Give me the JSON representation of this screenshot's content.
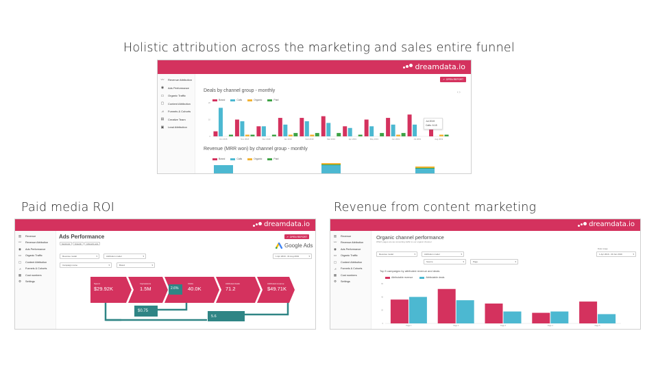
{
  "titles": {
    "main": "Holistic attribution across the marketing and sales entire funnel",
    "paid": "Paid media ROI",
    "content": "Revenue from content marketing"
  },
  "brand": {
    "name": "dreamdata.io",
    "color": "#d4325e"
  },
  "top_shot": {
    "sidebar": [
      {
        "label": "Revenue Attribution",
        "icon": "trend-line-icon"
      },
      {
        "label": "Ads Performance",
        "icon": "ads-icon"
      },
      {
        "label": "Organic Traffic",
        "icon": "traffic-icon"
      },
      {
        "label": "Content Attribution",
        "icon": "content-icon"
      },
      {
        "label": "Funnels & Cohorts",
        "icon": "funnel-icon"
      },
      {
        "label": "Creative Team",
        "icon": "team-icon"
      },
      {
        "label": "Lead Attribution",
        "icon": "lead-icon"
      }
    ],
    "open_report": "OPEN REPORT",
    "chart1_title": "Deals by channel group - monthly",
    "chart2_title": "Revenue (MRR won) by channel group - monthly",
    "legend": [
      "Brand",
      "Calls",
      "Organic",
      "Paid"
    ],
    "tooltip": {
      "title": "Jul 2019",
      "line": "Calls: 6.18"
    }
  },
  "chart_data": [
    {
      "type": "bar",
      "title": "Deals by channel group - monthly",
      "categories": [
        "Oct 2018",
        "Nov 2018",
        "Dec 2018",
        "Jan 2019",
        "Feb 2019",
        "Mar 2019",
        "Apr 2019",
        "May 2019",
        "Jun 2019",
        "Jul 2019",
        "Aug 2019"
      ],
      "series": [
        {
          "name": "Brand",
          "color": "#d4325e",
          "values": [
            3,
            10,
            6,
            11,
            11,
            12,
            6,
            10,
            11,
            13,
            4
          ]
        },
        {
          "name": "Calls",
          "color": "#4cb8d1",
          "values": [
            17,
            9,
            6,
            7,
            9,
            8,
            5,
            6,
            7,
            7,
            0
          ]
        },
        {
          "name": "Organic",
          "color": "#f2b233",
          "values": [
            0,
            1,
            0,
            1,
            1,
            0,
            0,
            0,
            1,
            0,
            1
          ]
        },
        {
          "name": "Paid",
          "color": "#3ea345",
          "values": [
            1,
            1,
            1,
            2,
            2,
            2,
            1,
            2,
            2,
            0,
            1
          ]
        }
      ],
      "ylim": [
        0,
        20
      ],
      "legend": "top-left"
    },
    {
      "type": "bar",
      "title": "Paid media ROI",
      "categories": [
        "Spend",
        "Impressions",
        "CTR",
        "Clicks",
        "Attributed deals",
        "Attributed revenue"
      ],
      "values_text": [
        "$29.92K",
        "1.5M",
        "2.6%",
        "40.0K",
        "71.2",
        "$49.71K"
      ],
      "cost_per_click": "$0.75",
      "return": "5.6"
    },
    {
      "type": "bar",
      "title": "Top 5 campaigns by attributed revenue and deals",
      "categories": [
        "Page 1",
        "Page 2",
        "Page 3",
        "Page 4",
        "Page 5"
      ],
      "series": [
        {
          "name": "Attributable revenue",
          "color": "#d4325e",
          "values": [
            36,
            52,
            30,
            16,
            33
          ]
        },
        {
          "name": "Attributable deals",
          "color": "#4cb8d1",
          "values": [
            40,
            35,
            18,
            18,
            14
          ]
        }
      ],
      "ylim": [
        0,
        60
      ],
      "legend": "top-left"
    }
  ],
  "paid_shot": {
    "sidebar": [
      {
        "label": "Revenue",
        "icon": "revenue-icon"
      },
      {
        "label": "Revenue Attribution",
        "icon": "trend-line-icon"
      },
      {
        "label": "Ads Performance",
        "icon": "ads-icon"
      },
      {
        "label": "Organic Traffic",
        "icon": "traffic-icon"
      },
      {
        "label": "Content Attribution",
        "icon": "content-icon"
      },
      {
        "label": "Funnels & Cohorts",
        "icon": "funnel-icon"
      },
      {
        "label": "Cost numbers",
        "icon": "cost-icon"
      },
      {
        "label": "Settings",
        "icon": "gear-icon"
      }
    ],
    "page_title": "Ads Performance",
    "tabs": [
      "facebook",
      "linkedin",
      "Adwords ads"
    ],
    "open_report": "OPEN REPORT",
    "google_ads": "Google Ads",
    "filter_1": "Revenue model",
    "filter_2": "Attribution model",
    "filter_3": "Campaign name",
    "filter_4": "Brand",
    "date_range": "1 Apr 2019 - 31 Aug 2019"
  },
  "content_shot": {
    "sidebar": [
      {
        "label": "Revenue",
        "icon": "revenue-icon"
      },
      {
        "label": "Revenue Attribution",
        "icon": "trend-line-icon"
      },
      {
        "label": "Ads Performance",
        "icon": "ads-icon"
      },
      {
        "label": "Organic Traffic",
        "icon": "traffic-icon"
      },
      {
        "label": "Content Attribution",
        "icon": "content-icon"
      },
      {
        "label": "Funnels & Cohorts",
        "icon": "funnel-icon"
      },
      {
        "label": "Cost numbers",
        "icon": "cost-icon"
      },
      {
        "label": "Settings",
        "icon": "gear-icon"
      }
    ],
    "page_title": "Organic channel performance",
    "subtitle": "Which pages are we converting traffic to our organic channel",
    "filter_1": "Revenue model",
    "filter_2": "Attribution model",
    "filter_3": "Source",
    "filter_4": "Page",
    "date_label": "Date range",
    "date_range": "1 Apr 2019 - 30 Jun 2019",
    "chart_title": "Top 5 campaigns by attributed revenue and deals",
    "legend": [
      "Attributable revenue",
      "Attributable deals"
    ]
  }
}
